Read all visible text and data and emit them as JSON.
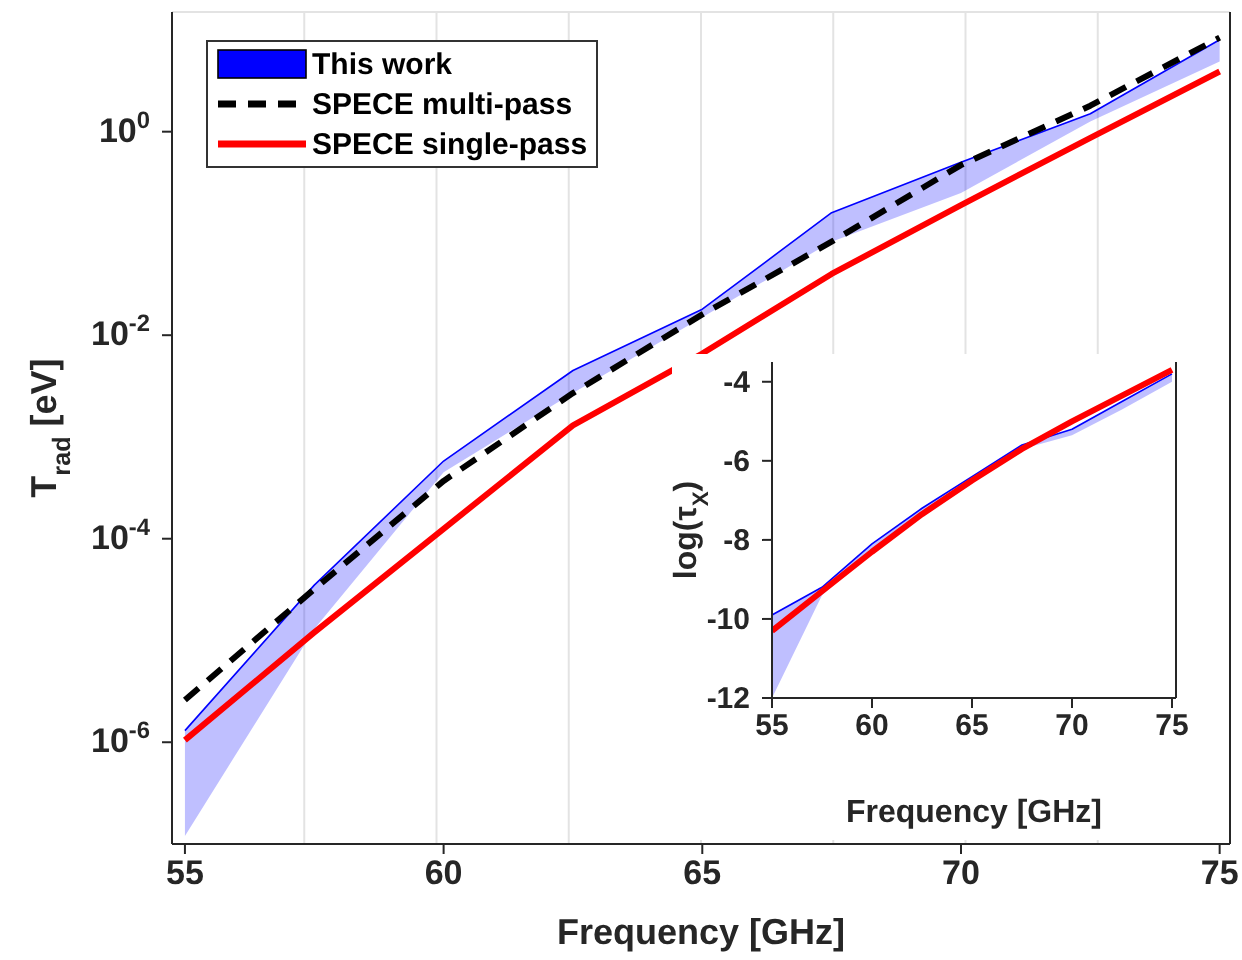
{
  "chart_data": [
    {
      "type": "line",
      "xlabel": "Frequency [GHz]",
      "ylabel": "T$_{rad}$ [eV]",
      "log": "y",
      "grid": true,
      "legend": "top left",
      "x": [
        55,
        57.5,
        60,
        62.5,
        65,
        67.5,
        70,
        72.5,
        75
      ],
      "xlim": [
        54.75,
        75.2
      ],
      "xticks": [
        55,
        60,
        65,
        70,
        75
      ],
      "ylim": [
        1e-07,
        15
      ],
      "yticks": [
        {
          "value": 1e-06,
          "label": "10$^{-6}$"
        },
        {
          "value": 0.0001,
          "label": "10$^{-4}$"
        },
        {
          "value": 0.01,
          "label": "10$^{-2}$"
        },
        {
          "value": 1,
          "label": "10$^{0}$"
        }
      ],
      "series": [
        {
          "name": "This work",
          "color": "#0000ff",
          "values": [
            1.3e-06,
            3.5e-05,
            0.00058,
            0.0045,
            0.018,
            0.16,
            0.5,
            1.5,
            8
          ],
          "lower": [
            1.2e-07,
            1.3e-05,
            0.00045,
            0.0027,
            0.015,
            0.083,
            0.25,
            1.26,
            4.9
          ],
          "upper": [
            1.3e-06,
            3.5e-05,
            0.00058,
            0.0045,
            0.018,
            0.16,
            0.5,
            1.5,
            8
          ]
        },
        {
          "name": "SPECE multi-pass",
          "type": "line",
          "color": "#000000",
          "line_style": "dashed",
          "values": [
            2.6e-06,
            3.2e-05,
            0.00037,
            0.0027,
            0.016,
            0.083,
            0.47,
            1.8,
            8.4
          ]
        },
        {
          "name": "SPECE single-pass",
          "type": "line",
          "color": "#ff0000",
          "line_style": "solid",
          "values": [
            1.05e-06,
            1.2e-05,
            0.000125,
            0.0013,
            0.0066,
            0.04,
            0.19,
            0.87,
            3.9
          ]
        }
      ]
    },
    {
      "type": "line",
      "xlabel": "Frequency [GHz]",
      "ylabel": "log(τ$_{X}$)",
      "grid": false,
      "x": [
        55,
        57.5,
        60,
        62.5,
        65,
        67.5,
        70,
        72.5,
        75
      ],
      "xlim": [
        55,
        75.2
      ],
      "xticks": [
        55,
        60,
        65,
        70,
        75
      ],
      "ylim": [
        -12,
        -3.5
      ],
      "yticks": [
        -12,
        -10,
        -8,
        -6,
        -4
      ],
      "series": [
        {
          "color": "#0000ff",
          "values": [
            -9.9,
            -9.2,
            -8.1,
            -7.2,
            -6.4,
            -5.6,
            -5.2,
            -4.5,
            -3.8
          ],
          "lower": [
            -12,
            -9.4,
            -8.3,
            -7.3,
            -6.5,
            -5.7,
            -5.35,
            -4.7,
            -4.0
          ],
          "upper": [
            -9.9,
            -9.2,
            -8.1,
            -7.2,
            -6.4,
            -5.6,
            -5.2,
            -4.5,
            -3.8
          ]
        },
        {
          "type": "line",
          "color": "#ff0000",
          "line_style": "solid",
          "values": [
            -10.3,
            -9.3,
            -8.3,
            -7.35,
            -6.5,
            -5.7,
            -5.0,
            -4.35,
            -3.7
          ]
        }
      ]
    }
  ]
}
